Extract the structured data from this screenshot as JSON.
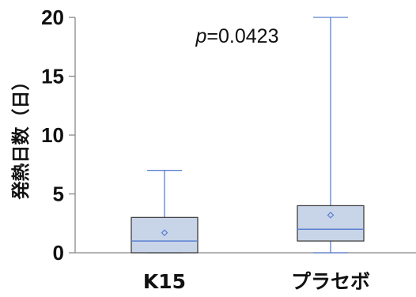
{
  "chart_data": {
    "type": "box",
    "ylabel": "発熱日数（日）",
    "ylim": [
      0,
      20
    ],
    "yticks": [
      0,
      5,
      10,
      15,
      20
    ],
    "annotation": {
      "p_letter": "p",
      "p_value": "=0.0423"
    },
    "categories": [
      "K15",
      "プラセボ"
    ],
    "series": [
      {
        "category": "K15",
        "min": 0,
        "q1": 0,
        "median": 1,
        "q3": 3,
        "max": 7,
        "mean": 1.7
      },
      {
        "category": "プラセボ",
        "min": 0,
        "q1": 1,
        "median": 2,
        "q3": 4,
        "max": 20,
        "mean": 3.2
      }
    ],
    "colors": {
      "box_fill": "#c8d4e8",
      "box_stroke": "#333333",
      "whisker": "#5b7fd1",
      "median": "#5b7fd1",
      "mean_marker": "#5b7fd1",
      "axis": "#888888"
    }
  }
}
